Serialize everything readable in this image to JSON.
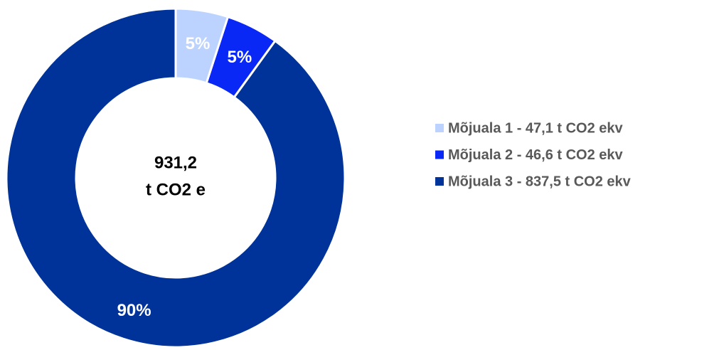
{
  "chart_data": {
    "type": "donut",
    "categories": [
      "Mõjuala 1 - 47,1 t CO2 ekv",
      "Mõjuala 2 - 46,6 t CO2 ekv",
      "Mõjuala 3 - 837,5 t CO2 ekv"
    ],
    "values": [
      5,
      5,
      90
    ],
    "value_labels": [
      "5%",
      "5%",
      "90%"
    ],
    "colors": [
      "#bdd3ff",
      "#0a28f5",
      "#003399"
    ],
    "label_colors": [
      "#ffffff",
      "#ffffff",
      "#ffffff"
    ],
    "center_label": [
      "931,2",
      "t CO2 e"
    ],
    "legend": "right"
  }
}
